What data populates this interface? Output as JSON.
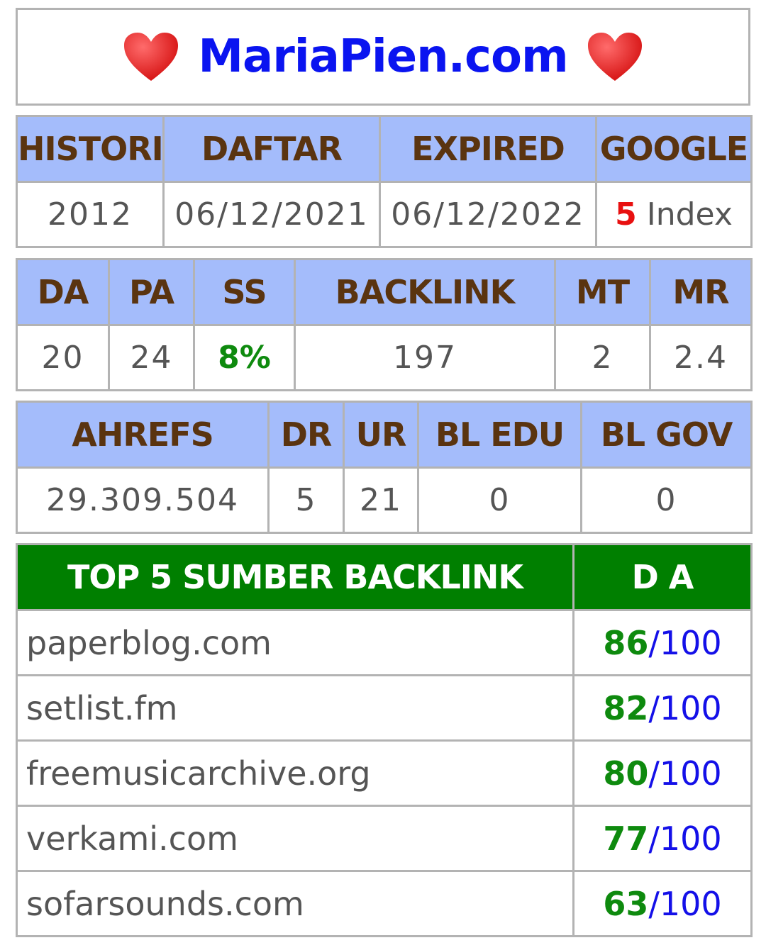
{
  "header": {
    "title": "MariaPien.com"
  },
  "table1": {
    "headers": [
      "HISTORI",
      "DAFTAR",
      "EXPIRED",
      "GOOGLE"
    ],
    "values": {
      "histori": "2012",
      "daftar": "06/12/2021",
      "expired": "06/12/2022",
      "google_count": "5",
      "google_label": "Index"
    }
  },
  "table2": {
    "headers": [
      "DA",
      "PA",
      "SS",
      "BACKLINK",
      "MT",
      "MR"
    ],
    "values": [
      "20",
      "24",
      "8%",
      "197",
      "2",
      "2.4"
    ]
  },
  "table3": {
    "headers": [
      "AHREFS",
      "DR",
      "UR",
      "BL EDU",
      "BL GOV"
    ],
    "values": [
      "29.309.504",
      "5",
      "21",
      "0",
      "0"
    ]
  },
  "table4": {
    "headers": [
      "TOP 5 SUMBER BACKLINK",
      "D A"
    ],
    "rows": [
      {
        "site": "paperblog.com",
        "da": "86",
        "max": "/100"
      },
      {
        "site": "setlist.fm",
        "da": "82",
        "max": "/100"
      },
      {
        "site": "freemusicarchive.org",
        "da": "80",
        "max": "/100"
      },
      {
        "site": "verkami.com",
        "da": "77",
        "max": "/100"
      },
      {
        "site": "sofarsounds.com",
        "da": "63",
        "max": "/100"
      }
    ]
  },
  "icons": {
    "left": "heart-icon",
    "right": "heart-icon"
  },
  "colors": {
    "header_bg": "#a4bcfb",
    "header_text": "#5a3410",
    "top_header_bg": "#007f00",
    "title": "#0a14f0",
    "accent_red": "#e81010",
    "accent_green": "#0e8a0e"
  }
}
